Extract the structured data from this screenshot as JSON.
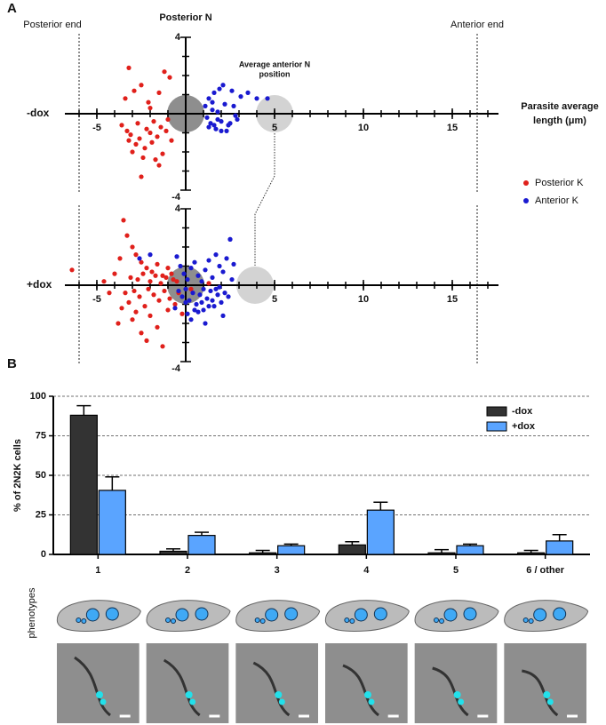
{
  "chart_data": [
    {
      "type": "scatter",
      "panel": "A",
      "row_label": "-dox",
      "title": "Posterior N",
      "xlabel": [
        "Parasite average",
        "length (μm)"
      ],
      "anterior_label": [
        "Average anterior N",
        "position"
      ],
      "annotations": [
        {
          "text": "Posterior end",
          "x": -6
        },
        {
          "text": "Anterior end",
          "x": 16.4
        }
      ],
      "anterior_n_x": 5,
      "xlim": [
        -6.8,
        17.6
      ],
      "ylim": [
        -4,
        4
      ],
      "xticks": [
        -5,
        5,
        10,
        15
      ],
      "yticks": [
        -4,
        4
      ],
      "x_minor_ticks": [
        -6,
        -5,
        -4,
        -3,
        -2,
        -1,
        1,
        2,
        3,
        4,
        5,
        6,
        7,
        8,
        9,
        10,
        11,
        12,
        13,
        14,
        15,
        16,
        17
      ],
      "y_minor_ticks": [
        -3,
        -2,
        -1,
        1,
        2,
        3
      ],
      "legend": "right",
      "series": [
        {
          "name": "Posterior K",
          "color": "#e0201b",
          "x": [
            -3.2,
            -2.9,
            -3.4,
            -2.5,
            -2.1,
            -1.5,
            -1.2,
            -0.9,
            -3.6,
            -3.3,
            -2.7,
            -2.2,
            -1.8,
            -1.4,
            -3.1,
            -2.6,
            -2.0,
            -1.6,
            -1.1,
            -2.8,
            -2.3,
            -1.9,
            -1.3,
            -0.8,
            -3.0,
            -2.4,
            -1.7,
            -1.0,
            -2.5,
            -3.2,
            -1.5,
            -2.0
          ],
          "y": [
            2.4,
            1.2,
            0.8,
            1.5,
            0.6,
            1.1,
            2.2,
            1.9,
            -0.6,
            -0.9,
            -0.5,
            -0.8,
            -0.4,
            -0.7,
            -1.1,
            -1.3,
            -1.0,
            -1.2,
            -0.9,
            -1.6,
            -1.8,
            -1.5,
            -2.1,
            -1.4,
            -2.0,
            -2.3,
            -2.4,
            -0.3,
            -3.3,
            -1.4,
            -2.7,
            0.3
          ]
        },
        {
          "name": "Anterior K",
          "color": "#1a1ad0",
          "x": [
            1.3,
            1.6,
            1.9,
            2.2,
            1.5,
            1.8,
            2.4,
            2.7,
            1.2,
            1.4,
            1.7,
            2.0,
            2.3,
            2.6,
            3.1,
            3.5,
            4.0,
            4.6,
            1.1,
            1.5,
            2.1,
            2.5,
            2.9,
            1.3,
            1.8,
            2.8,
            1.6,
            2.0
          ],
          "y": [
            0.8,
            1.1,
            1.3,
            0.5,
            0.2,
            -0.3,
            -0.6,
            0.4,
            -0.2,
            -0.5,
            -0.8,
            -0.4,
            -0.9,
            1.2,
            0.9,
            1.1,
            0.8,
            0.8,
            0.4,
            0.6,
            1.5,
            -0.5,
            -0.3,
            -0.7,
            0.1,
            -0.1,
            -0.6,
            -0.9
          ]
        }
      ]
    },
    {
      "type": "scatter",
      "row_label": "+dox",
      "end_lines": [
        -6,
        16.4
      ],
      "anterior_n_x": 3.9,
      "xlim": [
        -6.8,
        17.6
      ],
      "ylim": [
        -4,
        4
      ],
      "xticks": [
        -5,
        5,
        10,
        15
      ],
      "yticks": [
        -4,
        4
      ],
      "x_minor_ticks": [
        -6,
        -5,
        -4,
        -3,
        -2,
        -1,
        1,
        2,
        3,
        4,
        5,
        6,
        7,
        8,
        9,
        10,
        11,
        12,
        13,
        14,
        15,
        16,
        17
      ],
      "y_minor_ticks": [
        -3,
        -2,
        -1,
        1,
        2,
        3
      ],
      "series": [
        {
          "color": "#e0201b",
          "x": [
            -6.4,
            -4.6,
            -3.5,
            -3.3,
            -3.0,
            -2.8,
            -2.5,
            -2.2,
            -1.9,
            -1.6,
            -1.3,
            -1.0,
            -0.7,
            -4.0,
            -3.7,
            -3.1,
            -2.7,
            -2.4,
            -2.0,
            -1.7,
            -1.4,
            -1.1,
            -0.8,
            -0.5,
            -3.4,
            -2.9,
            -2.6,
            -2.1,
            -1.8,
            -1.2,
            -0.9,
            -0.4,
            -3.2,
            -2.3,
            -1.5,
            -3.6,
            -2.8,
            -2.0,
            -1.0,
            -4.3,
            -3.8,
            -2.5,
            -1.6,
            -0.6,
            -3.0,
            -2.2,
            -1.3,
            -0.2,
            0.3,
            1.3
          ],
          "y": [
            0.8,
            0.2,
            3.4,
            2.6,
            2.0,
            1.6,
            1.2,
            0.9,
            0.7,
            1.1,
            0.5,
            0.9,
            0.3,
            0.6,
            1.4,
            0.4,
            0.3,
            0.6,
            0.2,
            0.5,
            0.1,
            0.4,
            0.6,
            0.2,
            -0.4,
            -0.3,
            -0.6,
            -0.2,
            -0.5,
            -0.3,
            -0.7,
            -0.4,
            -0.9,
            -1.1,
            -0.8,
            -1.2,
            -1.4,
            -1.6,
            -1.3,
            -0.4,
            -2.0,
            -2.5,
            -2.2,
            -1.0,
            -1.8,
            -2.9,
            -3.2,
            -1.5,
            -0.2,
            0.1
          ]
        },
        {
          "color": "#1a1ad0",
          "x": [
            -0.5,
            -0.3,
            -0.1,
            0.1,
            0.3,
            0.5,
            0.7,
            0.9,
            1.1,
            1.3,
            1.5,
            1.7,
            1.9,
            2.1,
            2.3,
            2.5,
            2.7,
            -0.4,
            -0.2,
            0.0,
            0.2,
            0.4,
            0.6,
            0.8,
            1.0,
            1.2,
            1.4,
            1.6,
            1.8,
            2.0,
            2.2,
            2.4,
            -0.6,
            0.1,
            0.5,
            0.9,
            1.3,
            1.7,
            2.1,
            0.3,
            0.7,
            1.1,
            1.5,
            1.9,
            2.6,
            2.5,
            -2.6,
            -2.0,
            0.0,
            1.0
          ],
          "y": [
            1.5,
            1.0,
            0.6,
            0.3,
            0.9,
            1.2,
            0.5,
            0.2,
            0.8,
            1.3,
            0.4,
            1.6,
            1.0,
            0.7,
            1.4,
            2.4,
            1.1,
            -0.3,
            -0.6,
            -0.2,
            -0.8,
            -0.4,
            -1.0,
            -0.5,
            -0.2,
            -0.7,
            -0.3,
            -1.1,
            -0.5,
            -0.9,
            -0.4,
            -0.6,
            -1.2,
            -1.5,
            -1.3,
            -0.9,
            -1.1,
            -0.2,
            -1.6,
            -1.8,
            -1.4,
            -2.0,
            -0.8,
            -0.1,
            0.3,
            2.4,
            1.4,
            1.6,
            -0.9,
            -1.3
          ]
        }
      ]
    },
    {
      "type": "bar",
      "panel": "B",
      "ylabel": "% of 2N2K cells",
      "phenotype_label": "phenotypes",
      "categories": [
        "1",
        "2",
        "3",
        "4",
        "5",
        "6 / other"
      ],
      "ylim": [
        0,
        100
      ],
      "yticks": [
        0,
        25,
        50,
        75,
        100
      ],
      "grid": true,
      "legend": "upper right",
      "series": [
        {
          "name": "-dox",
          "color": "#333333",
          "values": [
            88,
            2,
            1,
            6,
            1,
            1
          ],
          "errors": [
            6,
            1.5,
            1.5,
            2,
            2,
            1.5
          ]
        },
        {
          "name": "+dox",
          "color": "#5aa4ff",
          "values": [
            40.5,
            12,
            5.5,
            28,
            5.5,
            8.5
          ],
          "errors": [
            8.5,
            2,
            1,
            5,
            1,
            4
          ]
        }
      ]
    }
  ]
}
